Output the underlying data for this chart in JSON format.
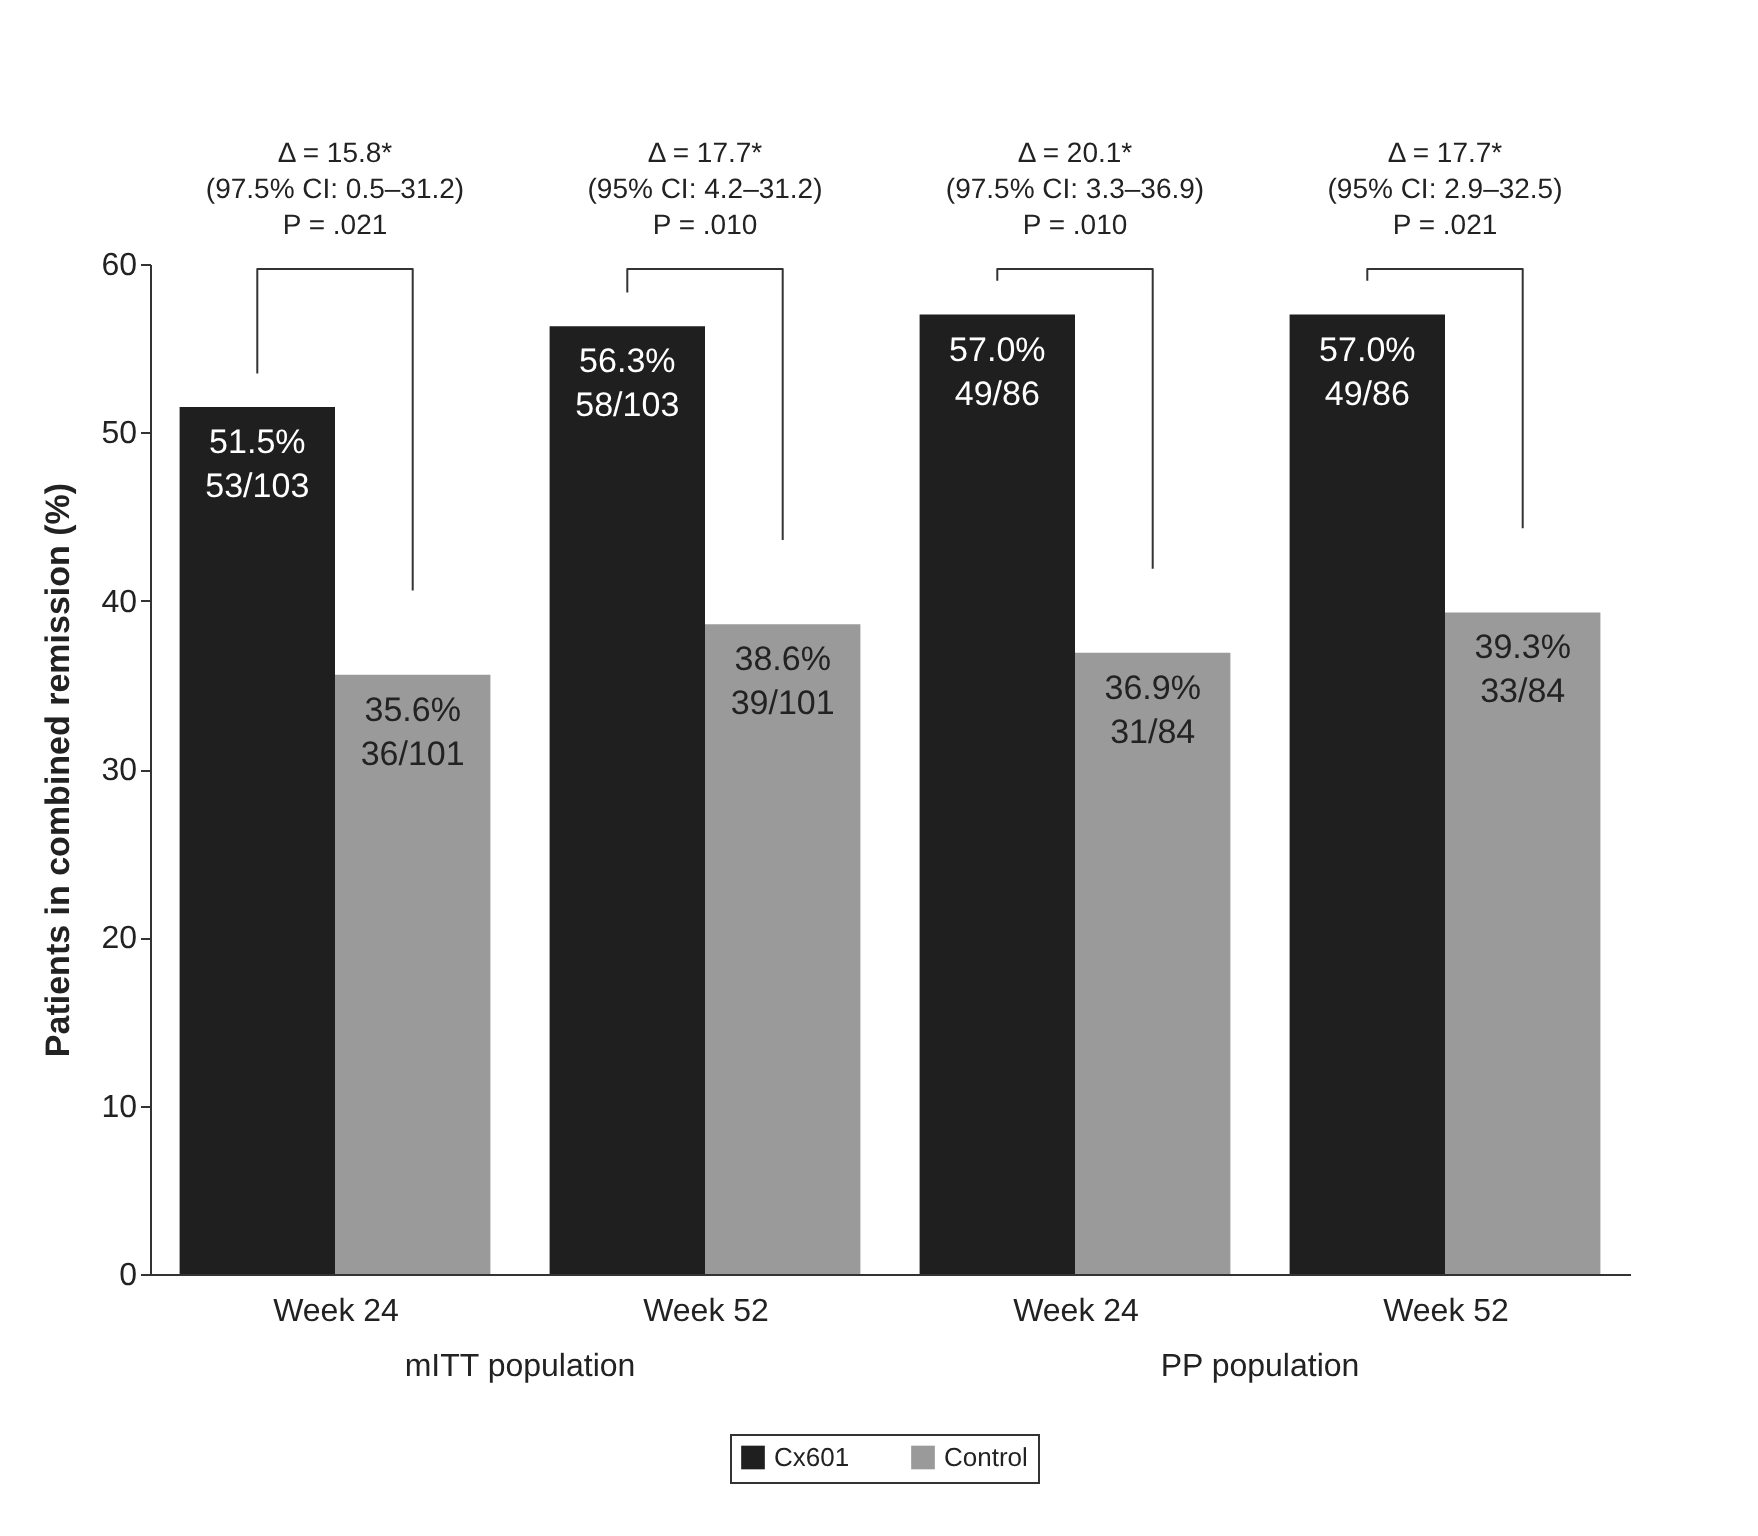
{
  "chart_data": {
    "type": "bar",
    "ylabel": "Patients in combined remission (%)",
    "categories": [
      "Week 24",
      "Week 52",
      "Week 24",
      "Week 52"
    ],
    "series": [
      {
        "name": "Cx601",
        "color": "#1f1f1f",
        "values": [
          51.5,
          56.3,
          57.0,
          57.0
        ],
        "value_labels": [
          "51.5%\n53/103",
          "56.3%\n58/103",
          "57.0%\n49/86",
          "57.0%\n49/86"
        ]
      },
      {
        "name": "Control",
        "color": "#9a9a9a",
        "values": [
          35.6,
          38.6,
          36.9,
          39.3
        ],
        "value_labels": [
          "35.6%\n36/101",
          "38.6%\n39/101",
          "36.9%\n31/84",
          "39.3%\n33/84"
        ]
      }
    ],
    "ylim": [
      0,
      60
    ],
    "yticks": [
      0,
      10,
      20,
      30,
      40,
      50,
      60
    ],
    "grid": false,
    "legend": "bottom",
    "annotations": [
      "Δ = 15.8*\n(97.5% CI: 0.5–31.2)\nP = .021",
      "Δ = 17.7*\n(95% CI: 4.2–31.2)\nP = .010",
      "Δ = 20.1*\n(97.5% CI: 3.3–36.9)\nP = .010",
      "Δ = 17.7*\n(95% CI: 2.9–32.5)\nP = .021",
      "mITT population",
      "PP population"
    ]
  }
}
